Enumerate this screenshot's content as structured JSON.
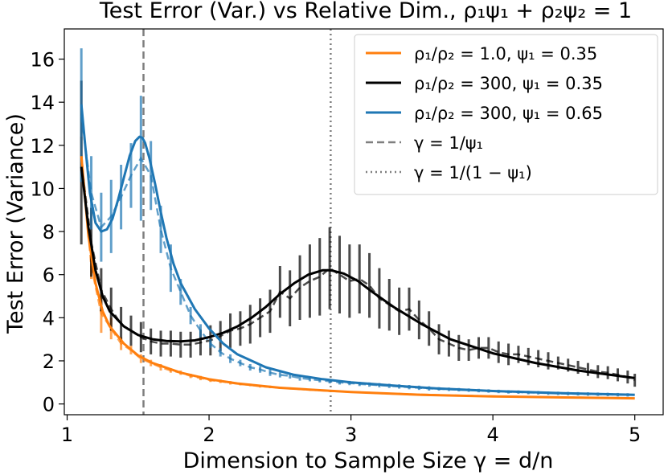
{
  "chart_data": {
    "type": "line",
    "title": "Test Error (Var.) vs Relative Dim., ρ₁ψ₁ + ρ₂ψ₂ = 1",
    "xlabel": "Dimension to Sample Size γ = d/n",
    "ylabel": "Test Error (Variance)",
    "xlim": [
      0.98,
      5.2
    ],
    "ylim": [
      -0.5,
      17.4
    ],
    "xticks": [
      1,
      2,
      3,
      4,
      5
    ],
    "yticks": [
      0,
      2,
      4,
      6,
      8,
      10,
      12,
      14,
      16
    ],
    "xtick_labels": [
      "1",
      "2",
      "3",
      "4",
      "5"
    ],
    "ytick_labels": [
      "0",
      "2",
      "4",
      "6",
      "8",
      "10",
      "12",
      "14",
      "16"
    ],
    "legend_position": "top-right",
    "vlines": [
      {
        "name": "γ = 1/ψ₁",
        "x": 1.538,
        "style": "dashed",
        "color": "#7f7f7f"
      },
      {
        "name": "γ = 1/(1 − ψ₁)",
        "x": 2.857,
        "style": "dotted",
        "color": "#7f7f7f"
      }
    ],
    "series": [
      {
        "name": "ρ₁/ρ₂ = 1.0, ψ₁ = 0.35",
        "color": "#ff7f0e",
        "x": [
          1.1,
          1.15,
          1.2,
          1.25,
          1.3,
          1.4,
          1.5,
          1.6,
          1.8,
          2.0,
          2.2,
          2.5,
          3.0,
          3.5,
          4.0,
          4.5,
          5.0
        ],
        "values": [
          11.5,
          7.8,
          5.6,
          4.3,
          3.6,
          2.8,
          2.25,
          1.9,
          1.45,
          1.15,
          0.95,
          0.75,
          0.55,
          0.42,
          0.35,
          0.3,
          0.26
        ],
        "empirical": {
          "x": [
            1.1,
            1.17,
            1.24,
            1.31,
            1.38,
            1.45,
            1.52,
            1.59,
            1.66,
            1.73,
            1.8,
            1.87,
            1.94,
            2.01,
            2.08,
            2.15,
            2.22,
            2.29,
            2.36,
            2.43,
            2.5,
            2.57,
            2.64,
            2.71,
            2.78,
            2.85,
            2.92,
            2.99,
            3.06,
            3.13,
            3.2,
            3.27,
            3.34,
            3.41,
            3.48,
            3.55,
            3.62,
            3.69,
            3.76,
            3.83,
            3.9,
            3.97,
            4.04,
            4.11,
            4.18,
            4.25,
            4.32,
            4.39,
            4.46,
            4.53,
            4.6,
            4.67,
            4.74,
            4.81,
            4.88,
            4.95
          ],
          "values": [
            11.6,
            6.4,
            4.2,
            3.5,
            2.8,
            2.5,
            2.1,
            1.9,
            1.7,
            1.55,
            1.45,
            1.3,
            1.2,
            1.1,
            1.05,
            0.98,
            0.92,
            0.88,
            0.82,
            0.79,
            0.75,
            0.72,
            0.69,
            0.66,
            0.63,
            0.6,
            0.58,
            0.56,
            0.54,
            0.52,
            0.5,
            0.48,
            0.47,
            0.45,
            0.44,
            0.43,
            0.41,
            0.4,
            0.39,
            0.38,
            0.37,
            0.36,
            0.35,
            0.34,
            0.34,
            0.33,
            0.32,
            0.31,
            0.31,
            0.3,
            0.3,
            0.29,
            0.29,
            0.28,
            0.28,
            0.27
          ],
          "err": [
            0.8,
            0.6,
            0.9,
            0.5,
            0.3,
            0.2,
            0.2,
            0.15,
            0.15,
            0.1,
            0.1,
            0.1,
            0.1,
            0.08,
            0.08,
            0.08,
            0.06,
            0.06,
            0.06,
            0.06,
            0.05,
            0.05,
            0.05,
            0.05,
            0.05,
            0.05,
            0.04,
            0.04,
            0.04,
            0.04,
            0.04,
            0.04,
            0.04,
            0.04,
            0.04,
            0.04,
            0.03,
            0.03,
            0.03,
            0.03,
            0.03,
            0.03,
            0.03,
            0.03,
            0.03,
            0.03,
            0.03,
            0.03,
            0.03,
            0.03,
            0.03,
            0.03,
            0.03,
            0.03,
            0.03,
            0.03
          ]
        }
      },
      {
        "name": "ρ₁/ρ₂ = 300, ψ₁ = 0.35",
        "color": "#000000",
        "x": [
          1.1,
          1.15,
          1.2,
          1.25,
          1.3,
          1.4,
          1.5,
          1.6,
          1.7,
          1.8,
          1.9,
          2.0,
          2.1,
          2.2,
          2.3,
          2.4,
          2.5,
          2.6,
          2.7,
          2.8,
          2.86,
          2.95,
          3.05,
          3.15,
          3.3,
          3.5,
          3.7,
          4.0,
          4.3,
          4.6,
          5.0
        ],
        "values": [
          11.0,
          8.2,
          6.2,
          5.0,
          4.3,
          3.6,
          3.2,
          3.0,
          2.92,
          2.9,
          2.95,
          3.1,
          3.3,
          3.6,
          4.0,
          4.5,
          5.1,
          5.6,
          6.0,
          6.2,
          6.2,
          6.05,
          5.7,
          5.2,
          4.5,
          3.7,
          3.0,
          2.35,
          1.9,
          1.55,
          1.2
        ],
        "empirical": {
          "x": [
            1.1,
            1.17,
            1.24,
            1.31,
            1.38,
            1.45,
            1.52,
            1.59,
            1.66,
            1.73,
            1.8,
            1.87,
            1.94,
            2.01,
            2.08,
            2.15,
            2.22,
            2.29,
            2.36,
            2.43,
            2.5,
            2.57,
            2.64,
            2.71,
            2.78,
            2.85,
            2.92,
            2.99,
            3.06,
            3.13,
            3.2,
            3.27,
            3.34,
            3.41,
            3.48,
            3.55,
            3.62,
            3.69,
            3.76,
            3.83,
            3.9,
            3.97,
            4.04,
            4.11,
            4.18,
            4.25,
            4.32,
            4.39,
            4.46,
            4.53,
            4.6,
            4.67,
            4.74,
            4.81,
            4.88,
            4.95,
            5.0
          ],
          "values": [
            11.2,
            7.5,
            5.3,
            4.4,
            3.7,
            3.4,
            3.1,
            2.9,
            2.8,
            2.8,
            2.75,
            2.75,
            2.85,
            2.95,
            3.15,
            3.4,
            3.5,
            3.7,
            4.0,
            4.3,
            5.2,
            4.9,
            5.4,
            5.7,
            5.9,
            6.3,
            6.0,
            5.7,
            5.8,
            5.5,
            4.9,
            4.6,
            4.3,
            4.4,
            3.9,
            3.5,
            3.0,
            2.8,
            2.6,
            2.5,
            2.6,
            2.6,
            2.4,
            2.3,
            2.3,
            2.2,
            2.1,
            2.0,
            1.9,
            1.8,
            1.7,
            1.6,
            1.5,
            1.45,
            1.35,
            1.25,
            1.1
          ],
          "err": [
            3.8,
            1.6,
            1.0,
            1.0,
            0.8,
            0.7,
            0.7,
            0.6,
            0.6,
            0.6,
            0.6,
            0.6,
            0.6,
            0.7,
            0.7,
            0.8,
            0.8,
            0.9,
            0.9,
            1.0,
            1.2,
            1.3,
            1.5,
            1.7,
            1.8,
            1.9,
            1.8,
            1.7,
            1.6,
            1.5,
            1.4,
            1.2,
            1.1,
            1.0,
            0.9,
            0.8,
            0.7,
            0.6,
            0.6,
            0.5,
            0.5,
            0.5,
            0.5,
            0.5,
            0.4,
            0.4,
            0.4,
            0.4,
            0.3,
            0.3,
            0.3,
            0.3,
            0.3,
            0.3,
            0.3,
            0.3,
            0.3
          ]
        }
      },
      {
        "name": "ρ₁/ρ₂ = 300, ψ₁ = 0.65",
        "color": "#1f77b4",
        "x": [
          1.1,
          1.13,
          1.16,
          1.2,
          1.24,
          1.28,
          1.32,
          1.36,
          1.4,
          1.44,
          1.48,
          1.51,
          1.53,
          1.55,
          1.58,
          1.62,
          1.66,
          1.7,
          1.75,
          1.8,
          1.9,
          2.0,
          2.1,
          2.2,
          2.4,
          2.6,
          2.8,
          3.0,
          3.3,
          3.6,
          4.0,
          4.5,
          5.0
        ],
        "values": [
          13.9,
          11.8,
          9.8,
          8.4,
          8.0,
          8.1,
          8.6,
          9.5,
          10.5,
          11.5,
          12.2,
          12.4,
          12.35,
          12.1,
          11.4,
          10.2,
          8.9,
          7.7,
          6.5,
          5.6,
          4.4,
          3.5,
          2.8,
          2.3,
          1.7,
          1.35,
          1.15,
          1.0,
          0.85,
          0.72,
          0.6,
          0.5,
          0.42
        ],
        "empirical": {
          "x": [
            1.1,
            1.17,
            1.24,
            1.31,
            1.38,
            1.45,
            1.52,
            1.59,
            1.66,
            1.73,
            1.8,
            1.87,
            1.94,
            2.01,
            2.08,
            2.15,
            2.22,
            2.29,
            2.36,
            2.43,
            2.5,
            2.57,
            2.64,
            2.71,
            2.78,
            2.85,
            2.92,
            2.99,
            3.06,
            3.13,
            3.2,
            3.27,
            3.34,
            3.41,
            3.48,
            3.55,
            3.62,
            3.69,
            3.76,
            3.83,
            3.9,
            3.97,
            4.04,
            4.11,
            4.18,
            4.25,
            4.32,
            4.39,
            4.46,
            4.53,
            4.6,
            4.67,
            4.74,
            4.81,
            4.88,
            4.95
          ],
          "values": [
            13.4,
            9.8,
            8.2,
            8.7,
            9.6,
            10.6,
            11.4,
            10.6,
            8.1,
            6.3,
            5.2,
            4.1,
            3.4,
            2.8,
            2.4,
            2.1,
            1.9,
            1.7,
            1.6,
            1.45,
            1.35,
            1.3,
            1.2,
            1.15,
            1.1,
            1.05,
            1.0,
            0.97,
            0.93,
            0.9,
            0.87,
            0.84,
            0.81,
            0.78,
            0.75,
            0.72,
            0.7,
            0.68,
            0.66,
            0.64,
            0.62,
            0.6,
            0.58,
            0.56,
            0.55,
            0.53,
            0.52,
            0.5,
            0.49,
            0.48,
            0.47,
            0.46,
            0.45,
            0.44,
            0.43,
            0.42
          ],
          "err": [
            3.1,
            1.7,
            1.6,
            1.7,
            1.5,
            1.5,
            2.9,
            1.6,
            1.1,
            1.1,
            0.6,
            0.4,
            0.3,
            0.2,
            0.2,
            0.2,
            0.15,
            0.15,
            0.15,
            0.15,
            0.12,
            0.12,
            0.12,
            0.1,
            0.1,
            0.1,
            0.1,
            0.1,
            0.1,
            0.1,
            0.1,
            0.1,
            0.1,
            0.1,
            0.1,
            0.1,
            0.08,
            0.08,
            0.08,
            0.08,
            0.08,
            0.08,
            0.08,
            0.08,
            0.08,
            0.08,
            0.08,
            0.08,
            0.08,
            0.08,
            0.08,
            0.08,
            0.08,
            0.08,
            0.08,
            0.08
          ]
        }
      }
    ]
  }
}
